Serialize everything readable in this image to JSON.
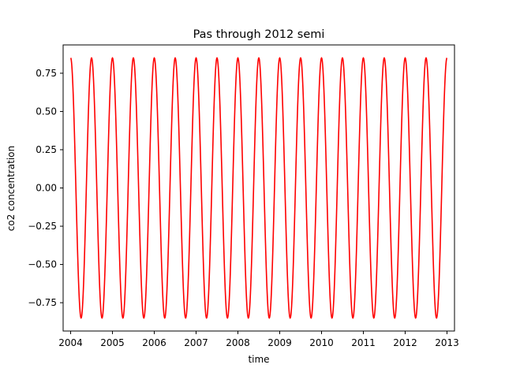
{
  "chart_data": {
    "type": "line",
    "title": "Pas through 2012 semi",
    "xlabel": "time",
    "ylabel": "co2 concentration",
    "xlim": [
      2003.82,
      2013.18
    ],
    "ylim": [
      -0.935,
      0.935
    ],
    "x_ticks": [
      2004,
      2005,
      2006,
      2007,
      2008,
      2009,
      2010,
      2011,
      2012,
      2013
    ],
    "x_tick_labels": [
      "2004",
      "2005",
      "2006",
      "2007",
      "2008",
      "2009",
      "2010",
      "2011",
      "2012",
      "2013"
    ],
    "y_ticks": [
      -0.75,
      -0.5,
      -0.25,
      0.0,
      0.25,
      0.5,
      0.75
    ],
    "y_tick_labels": [
      "−0.75",
      "−0.50",
      "−0.25",
      "0.00",
      "0.25",
      "0.50",
      "0.75"
    ],
    "grid": false,
    "series": [
      {
        "color": "#ff0000",
        "function": "cosine",
        "amplitude": 0.85,
        "period_years": 0.5,
        "x_start": 2004.0,
        "x_end": 2013.0,
        "y_at_start": 0.85
      }
    ]
  }
}
